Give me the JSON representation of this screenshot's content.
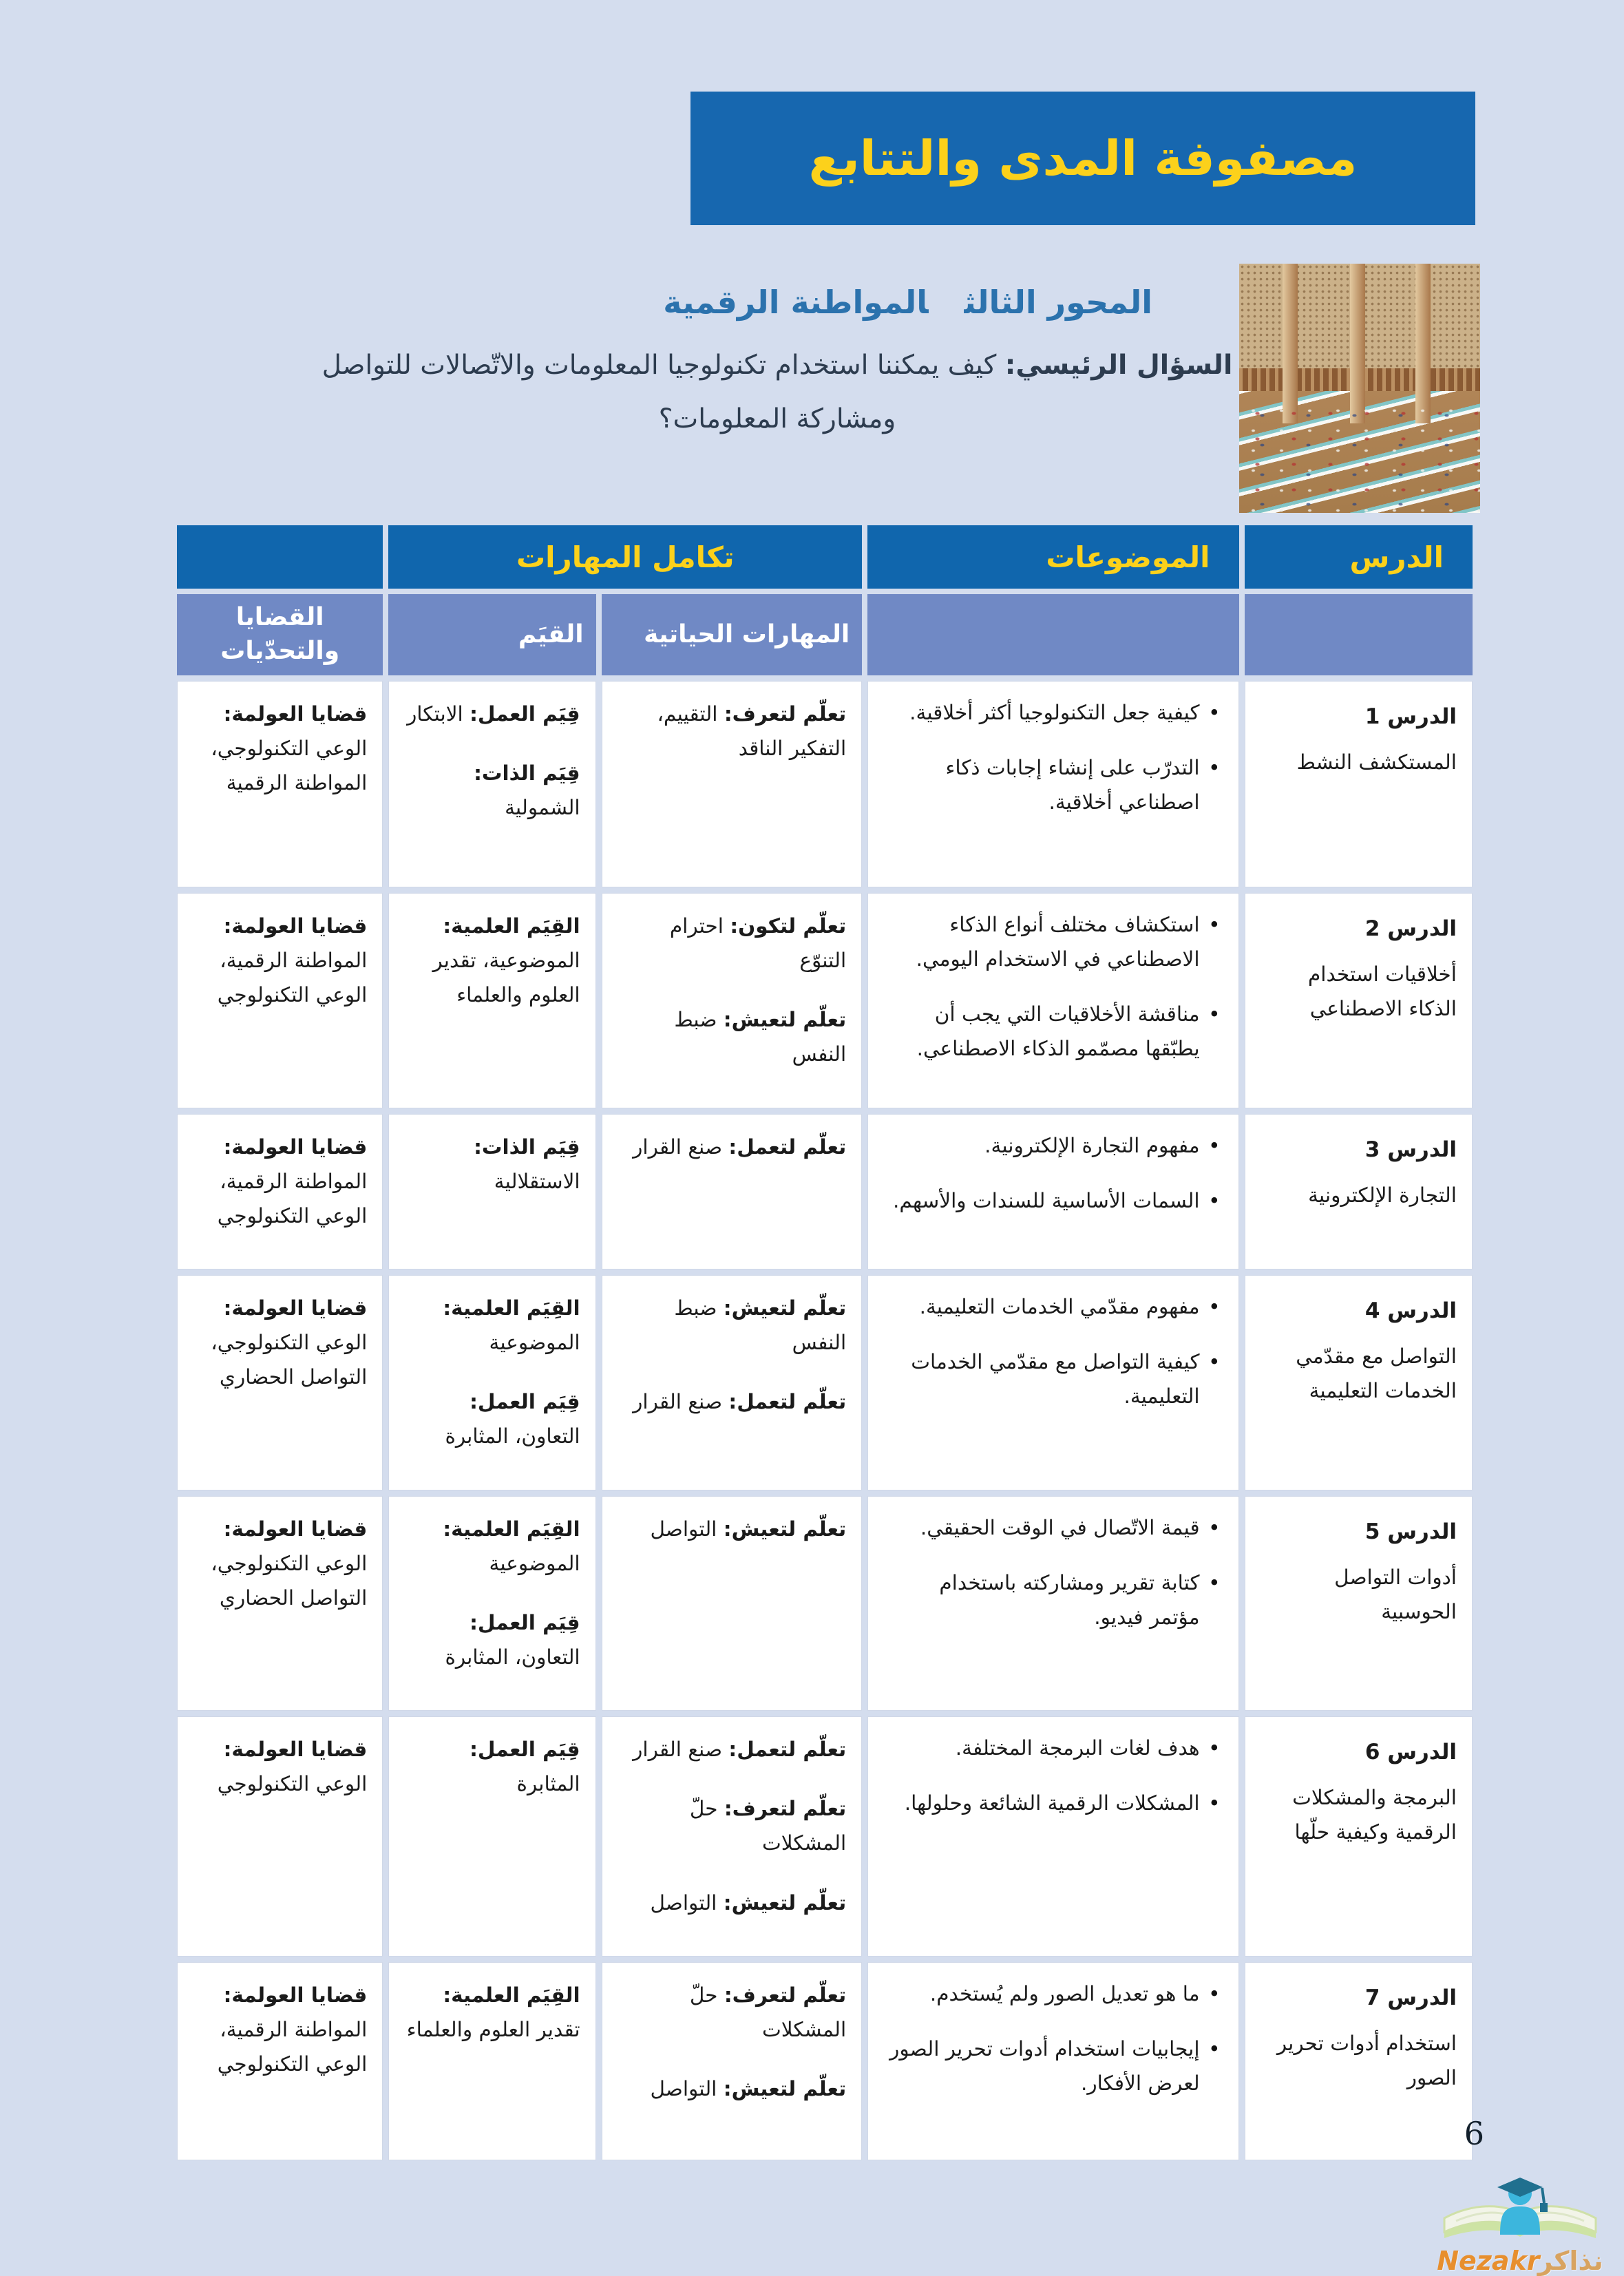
{
  "colors": {
    "page_background": "#d4ddee",
    "banner_blue": "#1767af",
    "header_dark_blue": "#1066ad",
    "header_light_blue": "#7089c5",
    "title_yellow": "#fcd11b",
    "heading_blue": "#2b72ad",
    "body_text": "#1b1b1b",
    "logo_orange": "#e78f2e"
  },
  "page": {
    "title": "مصفوفة المدى والتتابع",
    "page_number": "6"
  },
  "header": {
    "axis_label": "المحور الثالث",
    "axis_title": "المواطنة الرقمية",
    "question_label": "السؤال الرئيسي:",
    "question_line1": "كيف يمكننا استخدام تكنولوجيا المعلومات والاتّصالات للتواصل",
    "question_line2": "ومشاركة المعلومات؟",
    "photo_caption": "library-reading-hall-photo"
  },
  "table": {
    "headers": {
      "lesson": "الدرس",
      "topics": "الموضوعات",
      "skills_integration": "تكامل المهارات",
      "life_skills": "المهارات الحياتية",
      "values": "القيَم",
      "issues": "القضايا والتحدّيات"
    },
    "rows": [
      {
        "lesson_number": "الدرس 1",
        "lesson_title": "المستكشف النشط",
        "topics": [
          "كيفية جعل التكنولوجيا أكثر أخلاقية.",
          "التدرّب على إنشاء إجابات ذكاء اصطناعي أخلاقية."
        ],
        "life_skills": [
          {
            "label": "تعلّم لتعرف:",
            "text": "التقييم، التفكير الناقد"
          }
        ],
        "values": [
          {
            "label": "قِيَم العمل:",
            "text": "الابتكار"
          },
          {
            "label": "قِيَم الذات:",
            "text": "الشمولية"
          }
        ],
        "issues": [
          {
            "label": "قضايا العولمة:",
            "text": "الوعي التكنولوجي، المواطنة الرقمية"
          }
        ]
      },
      {
        "lesson_number": "الدرس 2",
        "lesson_title": "أخلاقيات استخدام الذكاء الاصطناعي",
        "topics": [
          "استكشاف مختلف أنواع الذكاء الاصطناعي في الاستخدام اليومي.",
          "مناقشة الأخلاقيات التي يجب أن يطبّقها مصمّمو الذكاء الاصطناعي."
        ],
        "life_skills": [
          {
            "label": "تعلّم لتكون:",
            "text": "احترام التنوّع"
          },
          {
            "label": "تعلّم لتعيش:",
            "text": "ضبط النفس"
          }
        ],
        "values": [
          {
            "label": "القِيَم العلمية:",
            "text": "الموضوعية، تقدير العلوم والعلماء"
          }
        ],
        "issues": [
          {
            "label": "قضايا العولمة:",
            "text": "المواطنة الرقمية، الوعي التكنولوجي"
          }
        ]
      },
      {
        "lesson_number": "الدرس 3",
        "lesson_title": "التجارة الإلكترونية",
        "topics": [
          "مفهوم التجارة الإلكترونية.",
          "السمات الأساسية للسندات والأسهم."
        ],
        "life_skills": [
          {
            "label": "تعلّم لتعمل:",
            "text": "صنع القرار"
          }
        ],
        "values": [
          {
            "label": "قِيَم الذات:",
            "text": "الاستقلالية"
          }
        ],
        "issues": [
          {
            "label": "قضايا العولمة:",
            "text": "المواطنة الرقمية، الوعي التكنولوجي"
          }
        ]
      },
      {
        "lesson_number": "الدرس 4",
        "lesson_title": "التواصل مع مقدّمي الخدمات التعليمية",
        "topics": [
          "مفهوم مقدّمي الخدمات التعليمية.",
          "كيفية التواصل مع مقدّمي الخدمات التعليمية."
        ],
        "life_skills": [
          {
            "label": "تعلّم لتعيش:",
            "text": "ضبط النفس"
          },
          {
            "label": "تعلّم لتعمل:",
            "text": "صنع القرار"
          }
        ],
        "values": [
          {
            "label": "القِيَم العلمية:",
            "text": "الموضوعية"
          },
          {
            "label": "قِيَم العمل:",
            "text": "التعاون، المثابرة"
          }
        ],
        "issues": [
          {
            "label": "قضايا العولمة:",
            "text": "الوعي التكنولوجي، التواصل الحضاري"
          }
        ]
      },
      {
        "lesson_number": "الدرس 5",
        "lesson_title": "أدوات التواصل الحوسبية",
        "topics": [
          "قيمة الاتّصال في الوقت الحقيقي.",
          "كتابة تقرير ومشاركته باستخدام مؤتمر فيديو."
        ],
        "life_skills": [
          {
            "label": "تعلّم لتعيش:",
            "text": "التواصل"
          }
        ],
        "values": [
          {
            "label": "القِيَم العلمية:",
            "text": "الموضوعية"
          },
          {
            "label": "قِيَم العمل:",
            "text": "التعاون، المثابرة"
          }
        ],
        "issues": [
          {
            "label": "قضايا العولمة:",
            "text": "الوعي التكنولوجي، التواصل الحضاري"
          }
        ]
      },
      {
        "lesson_number": "الدرس 6",
        "lesson_title": "البرمجة والمشكلات الرقمية وكيفية حلّها",
        "topics": [
          "هدف لغات البرمجة المختلفة.",
          "المشكلات الرقمية الشائعة وحلولها."
        ],
        "life_skills": [
          {
            "label": "تعلّم لتعمل:",
            "text": "صنع القرار"
          },
          {
            "label": "تعلّم لتعرف:",
            "text": "حلّ المشكلات"
          },
          {
            "label": "تعلّم لتعيش:",
            "text": "التواصل"
          }
        ],
        "values": [
          {
            "label": "قِيَم العمل:",
            "text": "المثابرة"
          }
        ],
        "issues": [
          {
            "label": "قضايا العولمة:",
            "text": "الوعي التكنولوجي"
          }
        ]
      },
      {
        "lesson_number": "الدرس 7",
        "lesson_title": "استخدام أدوات تحرير الصور",
        "topics": [
          "ما هو تعديل الصور ولم يُستخدم.",
          "إيجابيات استخدام أدوات تحرير الصور لعرض الأفكار."
        ],
        "life_skills": [
          {
            "label": "تعلّم لتعرف:",
            "text": "حلّ المشكلات"
          },
          {
            "label": "تعلّم لتعيش:",
            "text": "التواصل"
          }
        ],
        "values": [
          {
            "label": "القِيَم العلمية:",
            "text": "تقدير العلوم والعلماء"
          }
        ],
        "issues": [
          {
            "label": "قضايا العولمة:",
            "text": "المواطنة الرقمية، الوعي التكنولوجي"
          }
        ]
      }
    ]
  },
  "footer": {
    "logo_ar": "نذاكر",
    "logo_en": "Nezakr"
  }
}
